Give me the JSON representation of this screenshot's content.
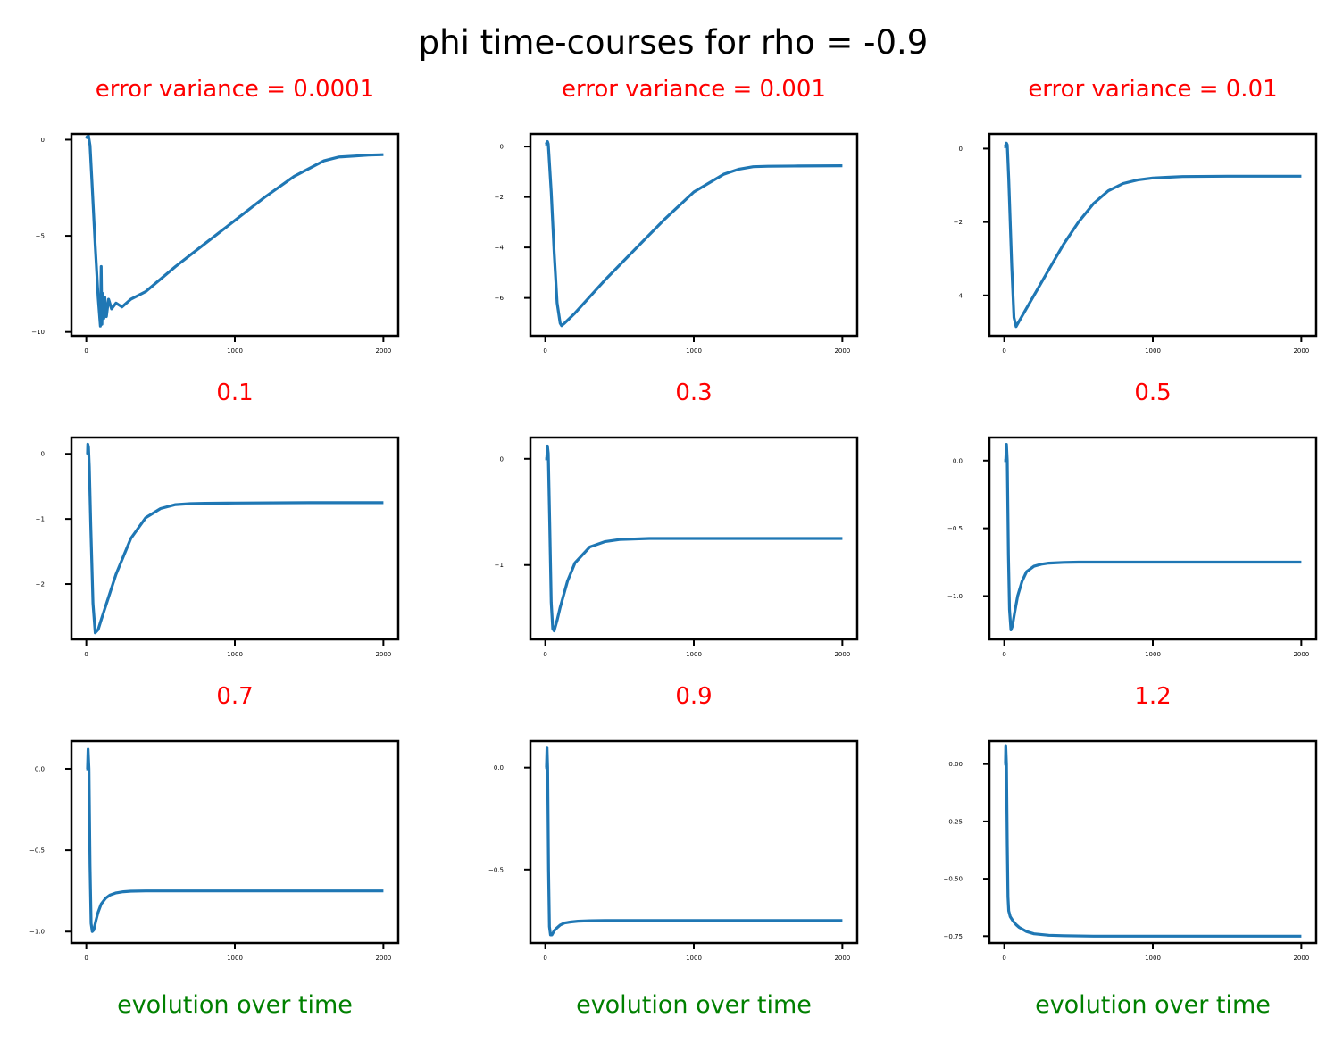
{
  "figure": {
    "title": "phi time-courses for rho = -0.9",
    "subplot_title_color": "#ff0000",
    "xlabel_color": "#008000",
    "line_color": "#1f77b4"
  },
  "chart_data": [
    {
      "type": "line",
      "title": "error variance = 0.0001",
      "xlabel": "",
      "xlim": [
        -100,
        2100
      ],
      "ylim": [
        -10.2,
        0.3
      ],
      "xticks": [
        0,
        1000,
        2000
      ],
      "yticks": [
        0,
        -5,
        -10
      ],
      "series": [
        {
          "x": [
            0,
            5,
            15,
            25,
            40,
            60,
            80,
            95,
            100,
            105,
            110,
            118,
            125,
            135,
            150,
            170,
            200,
            240,
            300,
            400,
            600,
            800,
            1000,
            1200,
            1400,
            1600,
            1700,
            1800,
            1900,
            2000
          ],
          "y": [
            0.05,
            0.15,
            0.2,
            -0.3,
            -2.5,
            -5.5,
            -8.2,
            -9.7,
            -6.6,
            -9.6,
            -8.0,
            -9.3,
            -8.2,
            -9.2,
            -8.3,
            -8.8,
            -8.5,
            -8.7,
            -8.3,
            -7.9,
            -6.6,
            -5.4,
            -4.2,
            -3.0,
            -1.9,
            -1.1,
            -0.9,
            -0.85,
            -0.8,
            -0.78
          ]
        }
      ]
    },
    {
      "type": "line",
      "title": "error variance = 0.001",
      "xlabel": "",
      "xlim": [
        -100,
        2100
      ],
      "ylim": [
        -7.5,
        0.5
      ],
      "xticks": [
        0,
        1000,
        2000
      ],
      "yticks": [
        0,
        -2,
        -4,
        -6
      ],
      "series": [
        {
          "x": [
            0,
            5,
            10,
            15,
            20,
            40,
            60,
            80,
            100,
            110,
            130,
            200,
            400,
            600,
            800,
            1000,
            1200,
            1300,
            1400,
            1500,
            1700,
            2000
          ],
          "y": [
            0.1,
            0.1,
            0.15,
            0.2,
            0.1,
            -1.8,
            -4.2,
            -6.2,
            -7.0,
            -7.1,
            -7.0,
            -6.6,
            -5.3,
            -4.1,
            -2.9,
            -1.8,
            -1.1,
            -0.9,
            -0.8,
            -0.78,
            -0.77,
            -0.76
          ]
        }
      ]
    },
    {
      "type": "line",
      "title": "error variance = 0.01",
      "xlabel": "",
      "xlim": [
        -100,
        2100
      ],
      "ylim": [
        -5.1,
        0.4
      ],
      "xticks": [
        0,
        1000,
        2000
      ],
      "yticks": [
        0,
        -2,
        -4
      ],
      "series": [
        {
          "x": [
            0,
            5,
            10,
            15,
            20,
            30,
            50,
            65,
            80,
            100,
            150,
            200,
            300,
            400,
            500,
            600,
            700,
            800,
            900,
            1000,
            1100,
            1200,
            1500,
            2000
          ],
          "y": [
            0.05,
            0.05,
            0.1,
            0.15,
            0.1,
            -0.8,
            -3.2,
            -4.6,
            -4.85,
            -4.7,
            -4.35,
            -4.0,
            -3.3,
            -2.6,
            -2.0,
            -1.5,
            -1.15,
            -0.95,
            -0.85,
            -0.8,
            -0.78,
            -0.76,
            -0.75,
            -0.75
          ]
        }
      ]
    },
    {
      "type": "line",
      "title": "0.1",
      "xlabel": "",
      "xlim": [
        -100,
        2100
      ],
      "ylim": [
        -2.85,
        0.25
      ],
      "xticks": [
        0,
        1000,
        2000
      ],
      "yticks": [
        0,
        -1,
        -2
      ],
      "series": [
        {
          "x": [
            0,
            8,
            10,
            15,
            20,
            30,
            45,
            60,
            80,
            100,
            150,
            200,
            300,
            400,
            500,
            600,
            700,
            800,
            1000,
            1500,
            2000
          ],
          "y": [
            0.0,
            0.0,
            0.15,
            0.1,
            -0.2,
            -1.1,
            -2.3,
            -2.75,
            -2.7,
            -2.55,
            -2.2,
            -1.85,
            -1.3,
            -0.98,
            -0.84,
            -0.78,
            -0.765,
            -0.76,
            -0.755,
            -0.75,
            -0.75
          ]
        }
      ]
    },
    {
      "type": "line",
      "title": "0.3",
      "xlabel": "",
      "xlim": [
        -100,
        2100
      ],
      "ylim": [
        -1.7,
        0.2
      ],
      "xticks": [
        0,
        1000,
        2000
      ],
      "yticks": [
        0,
        -1
      ],
      "series": [
        {
          "x": [
            0,
            10,
            15,
            20,
            30,
            40,
            50,
            60,
            80,
            100,
            150,
            200,
            300,
            400,
            500,
            700,
            1000,
            1500,
            2000
          ],
          "y": [
            0.0,
            0.0,
            0.12,
            0.05,
            -0.6,
            -1.35,
            -1.6,
            -1.62,
            -1.52,
            -1.4,
            -1.15,
            -0.98,
            -0.83,
            -0.78,
            -0.76,
            -0.75,
            -0.75,
            -0.75,
            -0.75
          ]
        }
      ]
    },
    {
      "type": "line",
      "title": "0.5",
      "xlabel": "",
      "xlim": [
        -100,
        2100
      ],
      "ylim": [
        -1.32,
        0.17
      ],
      "xticks": [
        0,
        1000,
        2000
      ],
      "yticks": [
        0.0,
        -0.5,
        -1.0
      ],
      "ytick_labels": [
        "0.0",
        "−0.5",
        "−1.0"
      ],
      "series": [
        {
          "x": [
            0,
            10,
            15,
            20,
            28,
            35,
            45,
            55,
            70,
            90,
            120,
            150,
            200,
            250,
            300,
            400,
            500,
            700,
            1000,
            1500,
            2000
          ],
          "y": [
            0.0,
            0.0,
            0.12,
            0.0,
            -0.7,
            -1.1,
            -1.25,
            -1.22,
            -1.12,
            -1.0,
            -0.89,
            -0.82,
            -0.78,
            -0.765,
            -0.757,
            -0.752,
            -0.75,
            -0.75,
            -0.75,
            -0.75,
            -0.75
          ]
        }
      ]
    },
    {
      "type": "line",
      "title": "0.7",
      "xlabel": "evolution over time",
      "xlim": [
        -100,
        2100
      ],
      "ylim": [
        -1.07,
        0.17
      ],
      "xticks": [
        0,
        1000,
        2000
      ],
      "yticks": [
        0.0,
        -0.5,
        -1.0
      ],
      "ytick_labels": [
        "0.0",
        "−0.5",
        "−1.0"
      ],
      "series": [
        {
          "x": [
            0,
            8,
            12,
            18,
            25,
            32,
            40,
            50,
            65,
            80,
            100,
            130,
            160,
            200,
            250,
            300,
            400,
            500,
            700,
            1000,
            1500,
            2000
          ],
          "y": [
            0.0,
            0.0,
            0.12,
            0.0,
            -0.6,
            -0.95,
            -1.0,
            -0.99,
            -0.93,
            -0.88,
            -0.83,
            -0.795,
            -0.775,
            -0.762,
            -0.755,
            -0.752,
            -0.75,
            -0.75,
            -0.75,
            -0.75,
            -0.75,
            -0.75
          ]
        }
      ]
    },
    {
      "type": "line",
      "title": "0.9",
      "xlabel": "evolution over time",
      "xlim": [
        -100,
        2100
      ],
      "ylim": [
        -0.86,
        0.13
      ],
      "xticks": [
        0,
        1000,
        2000
      ],
      "yticks": [
        0.0,
        -0.5
      ],
      "ytick_labels": [
        "0.0",
        "−0.5"
      ],
      "series": [
        {
          "x": [
            0,
            8,
            12,
            16,
            22,
            28,
            35,
            45,
            60,
            80,
            100,
            130,
            170,
            220,
            300,
            400,
            600,
            1000,
            1500,
            2000
          ],
          "y": [
            0.0,
            0.0,
            0.1,
            0.0,
            -0.5,
            -0.78,
            -0.82,
            -0.82,
            -0.8,
            -0.785,
            -0.772,
            -0.762,
            -0.757,
            -0.753,
            -0.751,
            -0.75,
            -0.75,
            -0.75,
            -0.75,
            -0.75
          ]
        }
      ]
    },
    {
      "type": "line",
      "title": "1.2",
      "xlabel": "evolution over time",
      "xlim": [
        -100,
        2100
      ],
      "ylim": [
        -0.78,
        0.1
      ],
      "xticks": [
        0,
        1000,
        2000
      ],
      "yticks": [
        0.0,
        -0.25,
        -0.5,
        -0.75
      ],
      "ytick_labels": [
        "0.00",
        "−0.25",
        "−0.50",
        "−0.75"
      ],
      "series": [
        {
          "x": [
            0,
            8,
            10,
            15,
            20,
            25,
            30,
            40,
            60,
            80,
            100,
            150,
            200,
            300,
            400,
            600,
            1000,
            1500,
            2000
          ],
          "y": [
            0.0,
            0.0,
            0.08,
            0.0,
            -0.35,
            -0.58,
            -0.64,
            -0.665,
            -0.685,
            -0.7,
            -0.712,
            -0.73,
            -0.74,
            -0.746,
            -0.748,
            -0.75,
            -0.75,
            -0.75,
            -0.75
          ]
        }
      ]
    }
  ]
}
